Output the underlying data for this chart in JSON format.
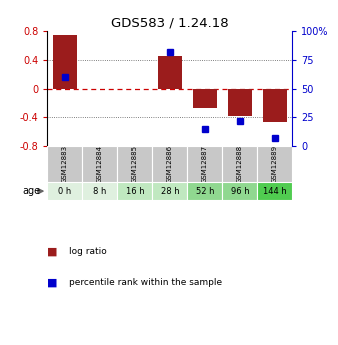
{
  "title": "GDS583 / 1.24.18",
  "samples": [
    "GSM12883",
    "GSM12884",
    "GSM12885",
    "GSM12886",
    "GSM12887",
    "GSM12888",
    "GSM12889"
  ],
  "ages": [
    "0 h",
    "8 h",
    "16 h",
    "28 h",
    "52 h",
    "96 h",
    "144 h"
  ],
  "log_ratio": [
    0.75,
    0.0,
    0.0,
    0.45,
    -0.27,
    -0.38,
    -0.46
  ],
  "percentile_rank": [
    60.0,
    null,
    null,
    82.0,
    15.0,
    22.0,
    7.0
  ],
  "bar_color": "#9B1C1C",
  "dot_color": "#0000CC",
  "ylim": [
    -0.8,
    0.8
  ],
  "right_ylim": [
    0,
    100
  ],
  "yticks_left": [
    -0.8,
    -0.4,
    0.0,
    0.4,
    0.8
  ],
  "ytick_labels_left": [
    "-0.8",
    "-0.4",
    "0",
    "0.4",
    "0.8"
  ],
  "yticks_right": [
    0,
    25,
    50,
    75,
    100
  ],
  "ytick_labels_right": [
    "0",
    "25",
    "50",
    "75",
    "100%"
  ],
  "hline_color_zero": "#CC0000",
  "hline_color_grid": "#555555",
  "age_row_colors": [
    "#dff0df",
    "#dff0df",
    "#c0e8c0",
    "#c0e8c0",
    "#90d890",
    "#90d890",
    "#50cc50"
  ],
  "sample_row_color": "#c8c8c8",
  "bar_width": 0.7,
  "figsize": [
    3.38,
    3.45
  ],
  "dpi": 100
}
